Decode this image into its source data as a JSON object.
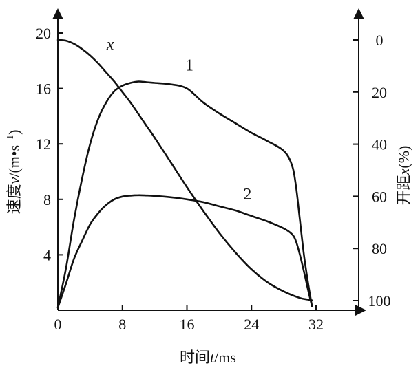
{
  "chart_data": {
    "type": "line",
    "title": "",
    "xlabel": {
      "cn": "时间",
      "sym": "t",
      "unit": "/ms"
    },
    "ylabel_left": {
      "cn": "速度",
      "sym": "v",
      "unit_pre": "/(m•s",
      "unit_sup": "−1",
      "unit_post": ")"
    },
    "ylabel_right": {
      "cn": "开距",
      "sym": "x",
      "unit": "(%)"
    },
    "xlim": [
      0,
      32
    ],
    "ylim_left": [
      0,
      20
    ],
    "ylim_right": [
      100,
      0
    ],
    "x_ticks": [
      "0",
      "8",
      "16",
      "24",
      "32"
    ],
    "y_left_ticks": [
      "4",
      "8",
      "12",
      "16",
      "20"
    ],
    "y_right_ticks": [
      "0",
      "20",
      "40",
      "60",
      "80",
      "100"
    ],
    "grid": false,
    "series": [
      {
        "name": "1",
        "axis": "left",
        "x": [
          0,
          1,
          2,
          3,
          4,
          5,
          6,
          7,
          8,
          9,
          10,
          11,
          12,
          14,
          16,
          18,
          20,
          22,
          24,
          26,
          28,
          29,
          29.5,
          30,
          30.5,
          31,
          31.5
        ],
        "y": [
          0.2,
          3.0,
          6.5,
          9.5,
          12.0,
          13.8,
          15.0,
          15.8,
          16.2,
          16.4,
          16.5,
          16.45,
          16.4,
          16.3,
          16.0,
          15.0,
          14.2,
          13.5,
          12.8,
          12.2,
          11.5,
          10.5,
          9.0,
          6.5,
          4.0,
          2.0,
          0.3
        ]
      },
      {
        "name": "2",
        "axis": "left",
        "x": [
          0,
          1,
          2,
          3,
          4,
          5,
          6,
          7,
          8,
          9,
          10,
          11,
          12,
          14,
          16,
          18,
          20,
          22,
          24,
          26,
          28,
          29,
          29.5,
          30,
          30.5,
          31,
          31.5
        ],
        "y": [
          0.2,
          1.9,
          3.7,
          5.0,
          6.2,
          7.0,
          7.6,
          8.0,
          8.2,
          8.27,
          8.3,
          8.28,
          8.25,
          8.15,
          8.0,
          7.8,
          7.5,
          7.2,
          6.8,
          6.4,
          5.9,
          5.5,
          5.0,
          4.0,
          2.8,
          1.5,
          0.3
        ]
      },
      {
        "name": "x",
        "axis": "right",
        "x": [
          0,
          1,
          2,
          3,
          4,
          5,
          6,
          7,
          8,
          9,
          10,
          11,
          12,
          14,
          16,
          18,
          20,
          22,
          24,
          26,
          28,
          30,
          31,
          31.5
        ],
        "y": [
          0,
          0.3,
          1.5,
          3.5,
          6.0,
          9.0,
          12.5,
          16.0,
          20.0,
          24.0,
          28.5,
          33.0,
          37.5,
          47.0,
          56.5,
          65.5,
          74.0,
          81.5,
          88.0,
          93.0,
          96.5,
          99.0,
          99.6,
          99.9
        ]
      }
    ],
    "curve_labels": [
      {
        "text": "x",
        "at": [
          6.5,
          18.8
        ]
      },
      {
        "text": "1",
        "at": [
          16.3,
          17.3
        ]
      },
      {
        "text": "2",
        "at": [
          23.5,
          8.0
        ]
      }
    ]
  }
}
